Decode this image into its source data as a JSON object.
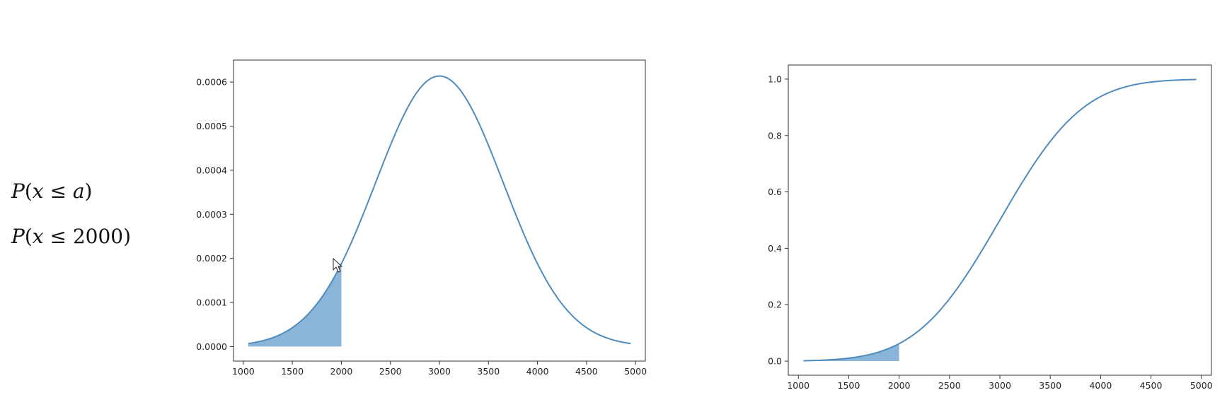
{
  "formulas": {
    "line1": {
      "P": "P",
      "open": "(",
      "x": "x",
      "le": " ≤ ",
      "rhs": "a",
      "close": ")"
    },
    "line2": {
      "P": "P",
      "open": "(",
      "x": "x",
      "le": " ≤ ",
      "rhs": "2000",
      "close": ")"
    }
  },
  "colors": {
    "line": "#4f8bbd",
    "fill": "#8ab5d8",
    "axis": "#333333"
  },
  "icons": {
    "cursor": "mouse-pointer-icon"
  },
  "chart_data": [
    {
      "type": "area",
      "function": "normal_pdf",
      "mean": 3000,
      "std": 650,
      "x_range": [
        1050,
        4950
      ],
      "shaded_x_range": [
        1050,
        2000
      ],
      "xlim": [
        900,
        5100
      ],
      "ylim": [
        -3.3e-05,
        0.00065
      ],
      "xticks": [
        1000,
        1500,
        2000,
        2500,
        3000,
        3500,
        4000,
        4500,
        5000
      ],
      "xtick_labels": [
        "1000",
        "1500",
        "2000",
        "2500",
        "3000",
        "3500",
        "4000",
        "4500",
        "5000"
      ],
      "yticks": [
        0,
        0.0001,
        0.0002,
        0.0003,
        0.0004,
        0.0005,
        0.0006
      ],
      "ytick_labels": [
        "0.0000",
        "0.0001",
        "0.0002",
        "0.0003",
        "0.0004",
        "0.0005",
        "0.0006"
      ],
      "grid": false
    },
    {
      "type": "area",
      "function": "normal_cdf",
      "mean": 3000,
      "std": 650,
      "x_range": [
        1050,
        4950
      ],
      "shaded_x_range": [
        1050,
        2000
      ],
      "xlim": [
        900,
        5100
      ],
      "ylim": [
        -0.05,
        1.05
      ],
      "xticks": [
        1000,
        1500,
        2000,
        2500,
        3000,
        3500,
        4000,
        4500,
        5000
      ],
      "xtick_labels": [
        "1000",
        "1500",
        "2000",
        "2500",
        "3000",
        "3500",
        "4000",
        "4500",
        "5000"
      ],
      "yticks": [
        0,
        0.2,
        0.4,
        0.6,
        0.8,
        1.0
      ],
      "ytick_labels": [
        "0.0",
        "0.2",
        "0.4",
        "0.6",
        "0.8",
        "1.0"
      ],
      "grid": false
    }
  ]
}
